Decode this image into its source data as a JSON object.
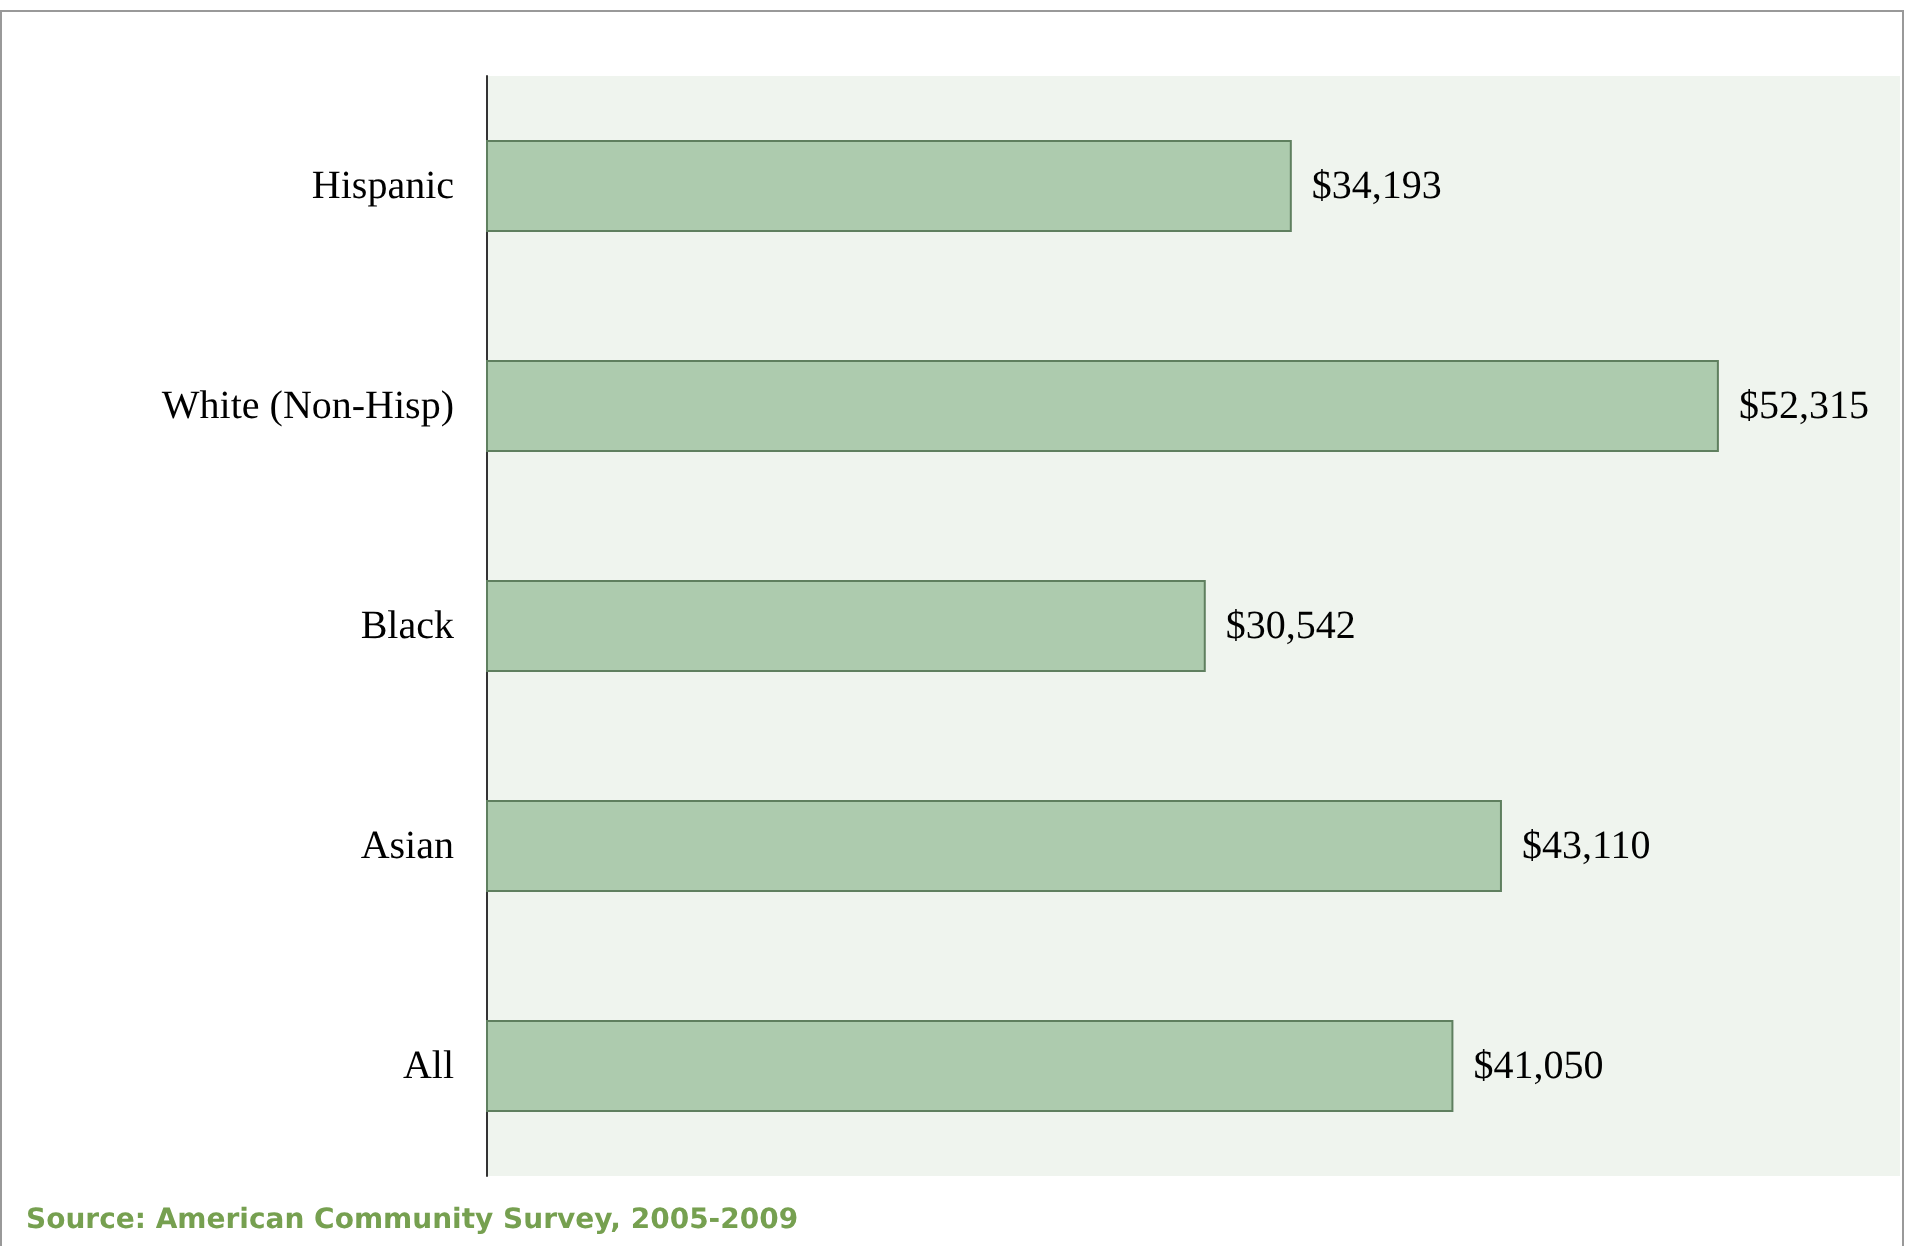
{
  "chart_data": {
    "type": "bar",
    "orientation": "horizontal",
    "categories": [
      "Hispanic",
      "White (Non-Hisp)",
      "Black",
      "Asian",
      "All"
    ],
    "values": [
      34193,
      52315,
      30542,
      43110,
      41050
    ],
    "value_labels": [
      "$34,193",
      "$52,315",
      "$30,542",
      "$43,110",
      "$41,050"
    ],
    "color": "#adcbae",
    "grid": false,
    "annotations": [
      "Source: American Community Survey, 2005-2009"
    ]
  }
}
